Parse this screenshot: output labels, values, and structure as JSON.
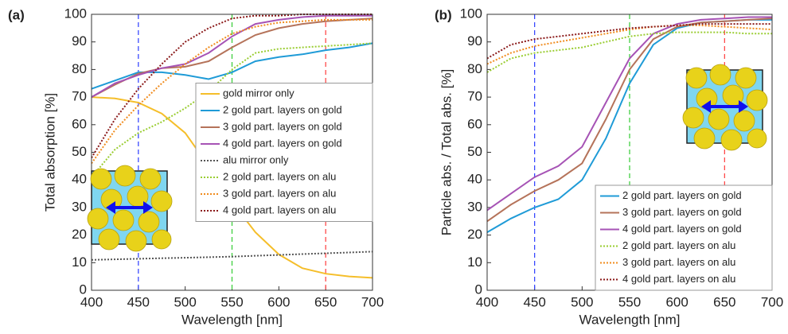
{
  "chart_data": [
    {
      "type": "line",
      "panel_label": "(a)",
      "xlabel": "Wavelength [nm]",
      "ylabel": "Total absorption [%]",
      "x": [
        400,
        425,
        450,
        475,
        500,
        525,
        550,
        575,
        600,
        625,
        650,
        675,
        700
      ],
      "xlim": [
        400,
        700
      ],
      "ylim": [
        0,
        100
      ],
      "xticks": [
        400,
        450,
        500,
        550,
        600,
        650,
        700
      ],
      "yticks": [
        0,
        10,
        20,
        30,
        40,
        50,
        60,
        70,
        80,
        90,
        100
      ],
      "legend": "center right",
      "vlines": [
        {
          "x": 450,
          "color": "#2b3cff"
        },
        {
          "x": 550,
          "color": "#33cc33"
        },
        {
          "x": 650,
          "color": "#ff3b3b"
        }
      ],
      "series": [
        {
          "name": "gold mirror only",
          "color": "#f5be2a",
          "style": "solid",
          "values": [
            70,
            69.5,
            68,
            64,
            57,
            45,
            32,
            21,
            13,
            8,
            6,
            5,
            4.5
          ]
        },
        {
          "name": "2 gold part. layers on gold",
          "color": "#1f9bd7",
          "style": "solid",
          "values": [
            73,
            76,
            79,
            79,
            78,
            76.5,
            79,
            83,
            84.5,
            85.5,
            87,
            88,
            89.5
          ]
        },
        {
          "name": "3 gold part. layers on gold",
          "color": "#b5735a",
          "style": "solid",
          "values": [
            70,
            74.5,
            78.5,
            80.5,
            81,
            83,
            88,
            92.5,
            95,
            96.5,
            97.5,
            98,
            98.5
          ]
        },
        {
          "name": "4 gold part. layers on gold",
          "color": "#a653b5",
          "style": "solid",
          "values": [
            70,
            75,
            78,
            80.5,
            82,
            86,
            92,
            96.5,
            98,
            99,
            99.5,
            99.5,
            99.5
          ]
        },
        {
          "name": "alu mirror only",
          "color": "#555555",
          "style": "dotted",
          "values": [
            11,
            11.2,
            11.4,
            11.6,
            11.8,
            12,
            12.2,
            12.5,
            12.8,
            13.1,
            13.4,
            13.7,
            14
          ]
        },
        {
          "name": "2 gold part. layers on alu",
          "color": "#9acd32",
          "style": "dotted",
          "values": [
            41,
            51,
            57,
            61,
            66,
            72,
            80,
            86,
            87.5,
            88,
            88.5,
            89,
            89.5
          ]
        },
        {
          "name": "3 gold part. layers on alu",
          "color": "#f08c1e",
          "style": "dotted",
          "values": [
            46,
            58,
            67,
            75,
            82,
            88,
            93,
            95.5,
            97,
            97.5,
            98,
            98,
            98
          ]
        },
        {
          "name": "4 gold part. layers on alu",
          "color": "#8b1a1a",
          "style": "dotted",
          "values": [
            48,
            62,
            73,
            82,
            90,
            95,
            98.5,
            99.5,
            99.5,
            100,
            100,
            100,
            100
          ]
        }
      ]
    },
    {
      "type": "line",
      "panel_label": "(b)",
      "xlabel": "Wavelength [nm]",
      "ylabel": "Particle abs. / Total abs. [%]",
      "x": [
        400,
        425,
        450,
        475,
        500,
        525,
        550,
        575,
        600,
        625,
        650,
        675,
        700
      ],
      "xlim": [
        400,
        700
      ],
      "ylim": [
        0,
        100
      ],
      "xticks": [
        400,
        450,
        500,
        550,
        600,
        650,
        700
      ],
      "yticks": [
        0,
        10,
        20,
        30,
        40,
        50,
        60,
        70,
        80,
        90,
        100
      ],
      "legend": "lower right",
      "vlines": [
        {
          "x": 450,
          "color": "#2b3cff"
        },
        {
          "x": 550,
          "color": "#33cc33"
        },
        {
          "x": 650,
          "color": "#ff3b3b"
        }
      ],
      "series": [
        {
          "name": "2 gold part. layers on gold",
          "color": "#1f9bd7",
          "style": "solid",
          "values": [
            21,
            26,
            30,
            33,
            40,
            55,
            75,
            89,
            95,
            97,
            97.5,
            98,
            98
          ]
        },
        {
          "name": "3 gold part. layers on gold",
          "color": "#b5735a",
          "style": "solid",
          "values": [
            25,
            31,
            36,
            40,
            46,
            62,
            80,
            91,
            95.5,
            97,
            97.5,
            98,
            98.5
          ]
        },
        {
          "name": "4 gold part. layers on gold",
          "color": "#a653b5",
          "style": "solid",
          "values": [
            29,
            35,
            41,
            45,
            52,
            68,
            84,
            93,
            96.5,
            98,
            98.5,
            99,
            99
          ]
        },
        {
          "name": "2 gold part. layers on alu",
          "color": "#9acd32",
          "style": "dotted",
          "values": [
            79,
            84,
            86,
            87,
            88,
            90,
            92,
            93,
            93.5,
            93.5,
            93.5,
            93,
            93
          ]
        },
        {
          "name": "3 gold part. layers on alu",
          "color": "#f08c1e",
          "style": "dotted",
          "values": [
            82,
            86,
            88.5,
            90,
            91.5,
            93,
            94.5,
            95.5,
            96,
            96,
            95.5,
            95,
            94.5
          ]
        },
        {
          "name": "4 gold part. layers on alu",
          "color": "#8b1a1a",
          "style": "dotted",
          "values": [
            84,
            89,
            91,
            92,
            93,
            94,
            95,
            95.5,
            96,
            96.5,
            96.5,
            96.5,
            96.5
          ]
        }
      ]
    }
  ]
}
